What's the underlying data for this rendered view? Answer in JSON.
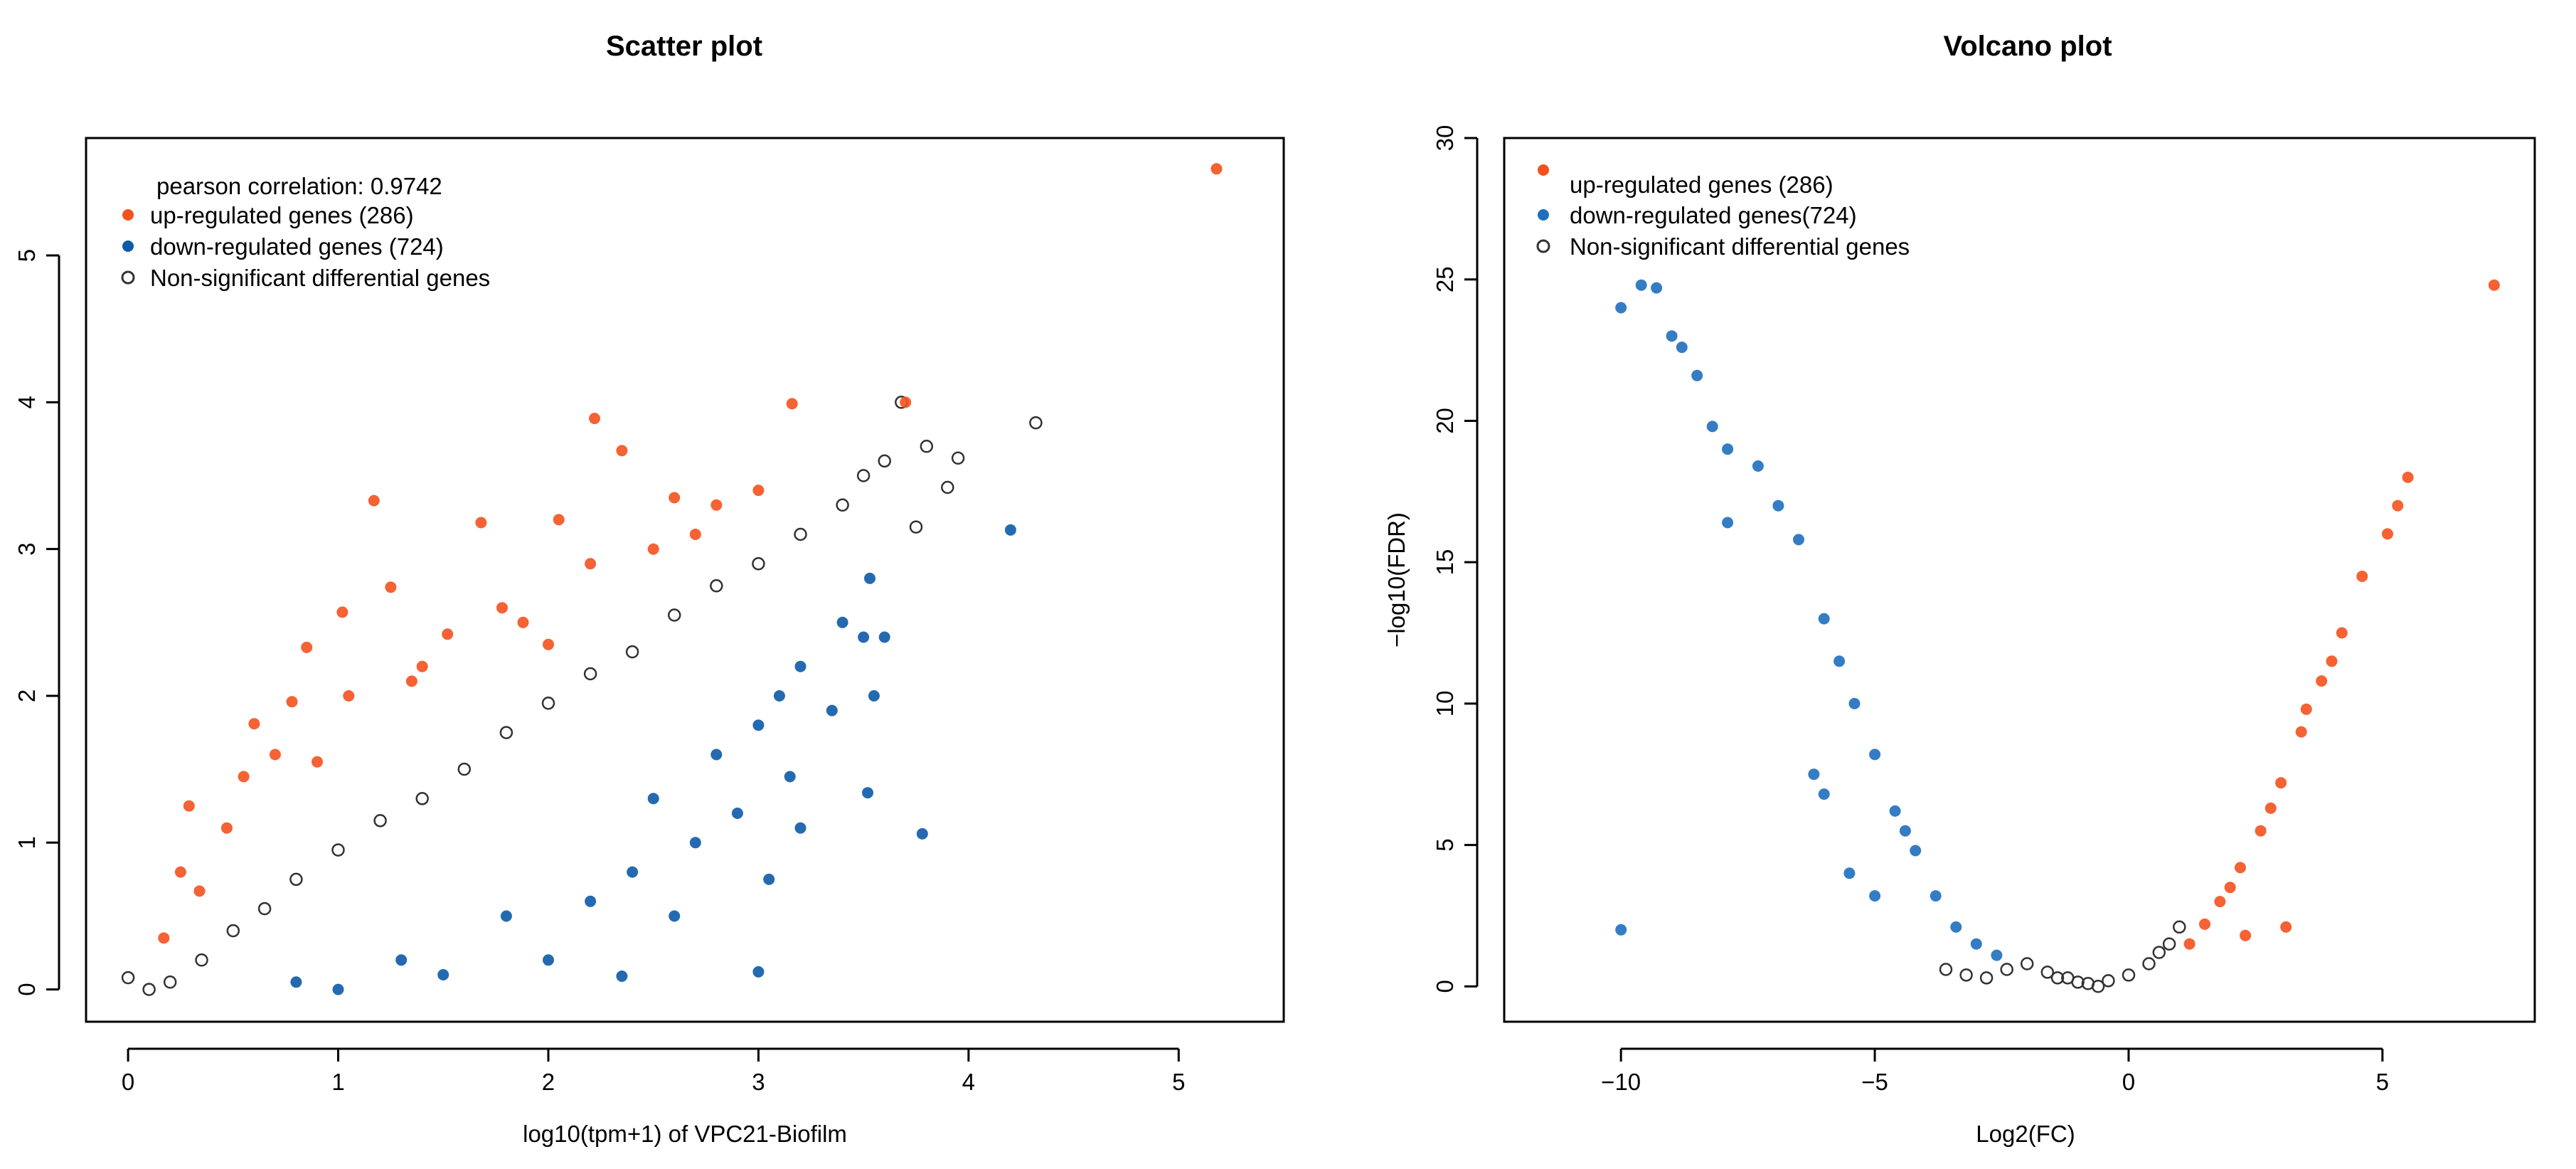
{
  "chart_data": [
    {
      "type": "scatter",
      "title": "Scatter plot",
      "xlabel": "log10(tpm+1) of VPC21-Biofilm",
      "ylabel": "",
      "xlim": [
        -0.2,
        5.5
      ],
      "ylim": [
        -0.22,
        5.8
      ],
      "xticks": [
        0,
        1,
        2,
        3,
        4,
        5
      ],
      "yticks": [
        0,
        1,
        2,
        3,
        4,
        5
      ],
      "annotation": "pearson correlation: 0.9742",
      "legend_position": "top-left",
      "colors": {
        "up": "#f4511e",
        "down": "#0d5aa7",
        "ns": "#333333"
      },
      "series": [
        {
          "name": "up-regulated genes (286)",
          "key": "up",
          "style": "filled",
          "points": [
            [
              5.18,
              5.59
            ],
            [
              2.22,
              3.89
            ],
            [
              1.68,
              3.18
            ],
            [
              1.17,
              3.33
            ],
            [
              2.35,
              3.67
            ],
            [
              2.6,
              3.35
            ],
            [
              3.16,
              3.99
            ],
            [
              3.7,
              4.0
            ],
            [
              1.88,
              2.5
            ],
            [
              1.02,
              2.57
            ],
            [
              0.85,
              2.33
            ],
            [
              0.6,
              1.81
            ],
            [
              0.29,
              1.25
            ],
            [
              0.17,
              0.35
            ],
            [
              0.34,
              0.67
            ],
            [
              0.55,
              1.45
            ],
            [
              0.78,
              1.96
            ],
            [
              1.4,
              2.2
            ],
            [
              1.25,
              2.74
            ],
            [
              2.05,
              3.2
            ],
            [
              2.0,
              2.35
            ],
            [
              1.78,
              2.6
            ],
            [
              2.2,
              2.9
            ],
            [
              2.5,
              3.0
            ],
            [
              2.8,
              3.3
            ],
            [
              3.0,
              3.4
            ],
            [
              0.47,
              1.1
            ],
            [
              0.7,
              1.6
            ],
            [
              1.05,
              2.0
            ],
            [
              1.52,
              2.42
            ],
            [
              0.25,
              0.8
            ],
            [
              0.9,
              1.55
            ],
            [
              1.35,
              2.1
            ],
            [
              2.7,
              3.1
            ]
          ]
        },
        {
          "name": "down-regulated genes (724)",
          "key": "down",
          "style": "filled",
          "points": [
            [
              4.2,
              3.13
            ],
            [
              3.53,
              2.8
            ],
            [
              3.55,
              2.0
            ],
            [
              3.78,
              1.06
            ],
            [
              3.52,
              1.34
            ],
            [
              3.0,
              0.12
            ],
            [
              2.35,
              0.09
            ],
            [
              3.2,
              1.1
            ],
            [
              3.5,
              2.4
            ],
            [
              3.15,
              1.45
            ],
            [
              2.6,
              0.5
            ],
            [
              3.35,
              1.9
            ],
            [
              3.05,
              0.75
            ],
            [
              2.9,
              1.2
            ],
            [
              3.6,
              2.4
            ],
            [
              1.0,
              0.0
            ],
            [
              1.5,
              0.1
            ],
            [
              2.0,
              0.2
            ],
            [
              2.2,
              0.6
            ],
            [
              2.4,
              0.8
            ],
            [
              2.7,
              1.0
            ],
            [
              2.8,
              1.6
            ],
            [
              3.0,
              1.8
            ],
            [
              3.2,
              2.2
            ],
            [
              3.4,
              2.5
            ],
            [
              1.8,
              0.5
            ],
            [
              1.3,
              0.2
            ],
            [
              0.8,
              0.05
            ],
            [
              2.5,
              1.3
            ],
            [
              3.1,
              2.0
            ]
          ]
        },
        {
          "name": "Non-significant differential genes",
          "key": "ns",
          "style": "hollow",
          "points": [
            [
              4.32,
              3.86
            ],
            [
              3.68,
              4.0
            ],
            [
              3.8,
              3.7
            ],
            [
              3.95,
              3.62
            ],
            [
              3.9,
              3.42
            ],
            [
              3.75,
              3.15
            ],
            [
              0.0,
              0.08
            ],
            [
              0.1,
              0.0
            ],
            [
              0.2,
              0.05
            ],
            [
              0.35,
              0.2
            ],
            [
              0.5,
              0.4
            ],
            [
              0.65,
              0.55
            ],
            [
              0.8,
              0.75
            ],
            [
              1.0,
              0.95
            ],
            [
              1.2,
              1.15
            ],
            [
              1.4,
              1.3
            ],
            [
              1.6,
              1.5
            ],
            [
              1.8,
              1.75
            ],
            [
              2.0,
              1.95
            ],
            [
              2.2,
              2.15
            ],
            [
              2.4,
              2.3
            ],
            [
              2.6,
              2.55
            ],
            [
              2.8,
              2.75
            ],
            [
              3.0,
              2.9
            ],
            [
              3.2,
              3.1
            ],
            [
              3.4,
              3.3
            ],
            [
              3.5,
              3.5
            ],
            [
              3.6,
              3.6
            ]
          ]
        }
      ]
    },
    {
      "type": "scatter",
      "title": "Volcano plot",
      "xlabel": "Log2(FC)",
      "ylabel": "−log10(FDR)",
      "xlim": [
        -12.3,
        8.0
      ],
      "ylim": [
        -1.25,
        30
      ],
      "xticks": [
        -10,
        -5,
        0,
        5
      ],
      "xtick_labels": [
        "−10",
        "−5",
        "0",
        "5"
      ],
      "yticks": [
        0,
        5,
        10,
        15,
        20,
        25,
        30
      ],
      "legend_position": "top-left",
      "colors": {
        "up": "#f4511e",
        "down": "#1e6fbf",
        "ns": "#333333"
      },
      "series": [
        {
          "name": "up-regulated genes (286)",
          "key": "up",
          "style": "filled",
          "points": [
            [
              7.2,
              24.8
            ],
            [
              5.5,
              18.0
            ],
            [
              5.3,
              17.0
            ],
            [
              5.1,
              16.0
            ],
            [
              4.6,
              14.5
            ],
            [
              4.2,
              12.5
            ],
            [
              3.8,
              10.8
            ],
            [
              3.4,
              9.0
            ],
            [
              3.0,
              7.2
            ],
            [
              2.6,
              5.5
            ],
            [
              2.2,
              4.2
            ],
            [
              1.8,
              3.0
            ],
            [
              1.5,
              2.2
            ],
            [
              1.2,
              1.5
            ],
            [
              3.1,
              2.1
            ],
            [
              2.3,
              1.8
            ],
            [
              2.8,
              6.3
            ],
            [
              2.0,
              3.5
            ],
            [
              4.0,
              11.5
            ],
            [
              3.5,
              9.8
            ]
          ]
        },
        {
          "name": "down-regulated genes(724)",
          "key": "down",
          "style": "filled",
          "points": [
            [
              -10.0,
              24.0
            ],
            [
              -9.6,
              24.8
            ],
            [
              -9.3,
              24.7
            ],
            [
              -9.0,
              23.0
            ],
            [
              -8.8,
              22.6
            ],
            [
              -8.5,
              21.6
            ],
            [
              -8.2,
              19.8
            ],
            [
              -7.9,
              19.0
            ],
            [
              -7.3,
              18.4
            ],
            [
              -6.9,
              17.0
            ],
            [
              -6.5,
              15.8
            ],
            [
              -6.0,
              13.0
            ],
            [
              -5.7,
              11.5
            ],
            [
              -5.4,
              10.0
            ],
            [
              -5.0,
              8.2
            ],
            [
              -4.6,
              6.2
            ],
            [
              -4.2,
              4.8
            ],
            [
              -3.8,
              3.2
            ],
            [
              -3.4,
              2.1
            ],
            [
              -3.0,
              1.5
            ],
            [
              -2.6,
              1.1
            ],
            [
              -7.9,
              16.4
            ],
            [
              -5.5,
              4.0
            ],
            [
              -6.0,
              6.8
            ],
            [
              -5.0,
              3.2
            ],
            [
              -10.0,
              2.0
            ],
            [
              -6.2,
              7.5
            ],
            [
              -4.4,
              5.5
            ]
          ]
        },
        {
          "name": "Non-significant differential genes",
          "key": "ns",
          "style": "hollow",
          "points": [
            [
              -3.6,
              0.6
            ],
            [
              -3.2,
              0.4
            ],
            [
              -2.8,
              0.3
            ],
            [
              -2.4,
              0.6
            ],
            [
              -2.0,
              0.8
            ],
            [
              -1.6,
              0.5
            ],
            [
              -1.2,
              0.3
            ],
            [
              -0.8,
              0.1
            ],
            [
              -0.4,
              0.2
            ],
            [
              0.0,
              0.4
            ],
            [
              0.4,
              0.8
            ],
            [
              0.8,
              1.5
            ],
            [
              1.0,
              2.1
            ],
            [
              0.6,
              1.2
            ],
            [
              -0.6,
              0.0
            ],
            [
              -1.0,
              0.15
            ],
            [
              -1.4,
              0.3
            ]
          ]
        }
      ]
    }
  ]
}
